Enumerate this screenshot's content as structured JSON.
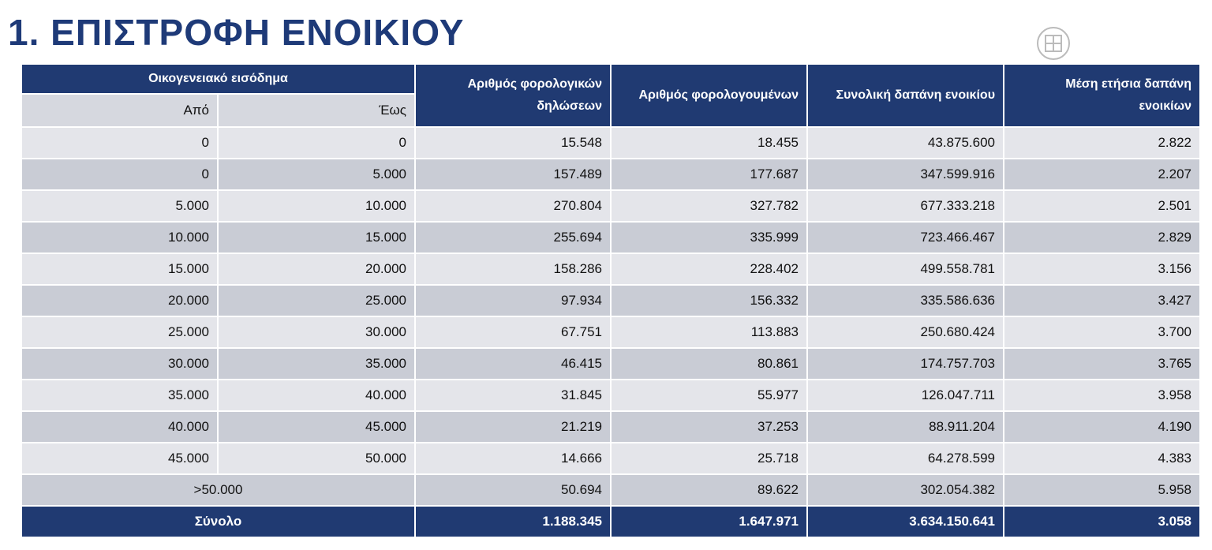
{
  "title": "1. ΕΠΙΣΤΡΟΦΗ ΕΝΟΙΚΙΟΥ",
  "table": {
    "header": {
      "income": "Οικογενειακό εισόδημα",
      "from": "Από",
      "to": "Έως",
      "columns": [
        "Αριθμός φορολογικών δηλώσεων",
        "Αριθμός φορολογουμένων",
        "Συνολική δαπάνη ενοικίου",
        "Μέση ετήσια δαπάνη ενοικίων"
      ]
    },
    "rows": [
      [
        "0",
        "0",
        "15.548",
        "18.455",
        "43.875.600",
        "2.822"
      ],
      [
        "0",
        "5.000",
        "157.489",
        "177.687",
        "347.599.916",
        "2.207"
      ],
      [
        "5.000",
        "10.000",
        "270.804",
        "327.782",
        "677.333.218",
        "2.501"
      ],
      [
        "10.000",
        "15.000",
        "255.694",
        "335.999",
        "723.466.467",
        "2.829"
      ],
      [
        "15.000",
        "20.000",
        "158.286",
        "228.402",
        "499.558.781",
        "3.156"
      ],
      [
        "20.000",
        "25.000",
        "97.934",
        "156.332",
        "335.586.636",
        "3.427"
      ],
      [
        "25.000",
        "30.000",
        "67.751",
        "113.883",
        "250.680.424",
        "3.700"
      ],
      [
        "30.000",
        "35.000",
        "46.415",
        "80.861",
        "174.757.703",
        "3.765"
      ],
      [
        "35.000",
        "40.000",
        "31.845",
        "55.977",
        "126.047.711",
        "3.958"
      ],
      [
        "40.000",
        "45.000",
        "21.219",
        "37.253",
        "88.911.204",
        "4.190"
      ],
      [
        "45.000",
        "50.000",
        "14.666",
        "25.718",
        "64.278.599",
        "4.383"
      ]
    ],
    "last_row": {
      "label": ">50.000",
      "values": [
        "50.694",
        "89.622",
        "302.054.382",
        "5.958"
      ]
    },
    "total": {
      "label": "Σύνολο",
      "values": [
        "1.188.345",
        "1.647.971",
        "3.634.150.641",
        "3.058"
      ]
    }
  }
}
